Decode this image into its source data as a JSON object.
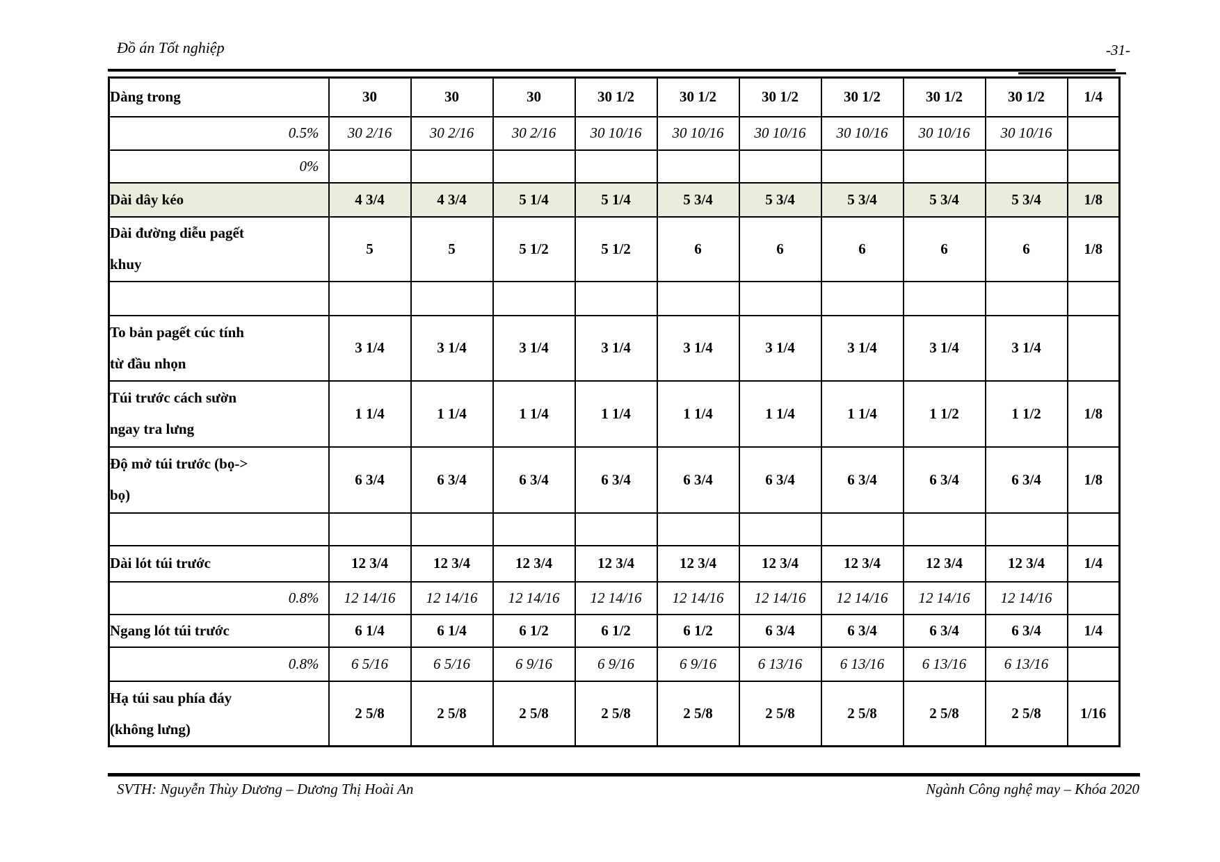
{
  "page": {
    "header": {
      "title": "Đồ án Tốt nghiệp",
      "page_number": "-31-"
    },
    "footer": {
      "left": "SVTH: Nguyễn Thùy Dương – Dương Thị Hoài An",
      "right": "Ngành Công nghệ may – Khóa 2020"
    }
  },
  "table": {
    "highlight_color": "#e9eedc",
    "rows": [
      {
        "type": "measure",
        "highlight": false,
        "label": "Dàng trong",
        "values": [
          "30",
          "30",
          "30",
          "30 1/2",
          "30 1/2",
          "30 1/2",
          "30 1/2",
          "30 1/2",
          "30 1/2"
        ],
        "tolerance": "1/4"
      },
      {
        "type": "percent",
        "highlight": false,
        "label": "0.5%",
        "values": [
          "30 2/16",
          "30 2/16",
          "30 2/16",
          "30 10/16",
          "30 10/16",
          "30 10/16",
          "30 10/16",
          "30 10/16",
          "30 10/16"
        ],
        "tolerance": ""
      },
      {
        "type": "percent",
        "highlight": false,
        "label": "0%",
        "values": [
          "",
          "",
          "",
          "",
          "",
          "",
          "",
          "",
          ""
        ],
        "tolerance": ""
      },
      {
        "type": "measure",
        "highlight": true,
        "label": "Dài dây kéo",
        "values": [
          "4 3/4",
          "4 3/4",
          "5 1/4",
          "5 1/4",
          "5 3/4",
          "5 3/4",
          "5 3/4",
          "5 3/4",
          "5 3/4"
        ],
        "tolerance": "1/8"
      },
      {
        "type": "measure",
        "highlight": false,
        "label": "Dài đường diễu pagết\nkhuy",
        "values": [
          "5",
          "5",
          "5 1/2",
          "5 1/2",
          "6",
          "6",
          "6",
          "6",
          "6"
        ],
        "tolerance": "1/8"
      },
      {
        "type": "empty",
        "highlight": false,
        "label": "",
        "values": [
          "",
          "",
          "",
          "",
          "",
          "",
          "",
          "",
          ""
        ],
        "tolerance": ""
      },
      {
        "type": "measure",
        "highlight": false,
        "label": "To bản pagết cúc tính\ntừ đầu nhọn",
        "values": [
          "3 1/4",
          "3 1/4",
          "3 1/4",
          "3 1/4",
          "3 1/4",
          "3 1/4",
          "3 1/4",
          "3 1/4",
          "3 1/4"
        ],
        "tolerance": ""
      },
      {
        "type": "measure",
        "highlight": false,
        "label": "Túi trước cách sườn\nngay tra lưng",
        "values": [
          "1 1/4",
          "1 1/4",
          "1 1/4",
          "1 1/4",
          "1 1/4",
          "1 1/4",
          "1 1/4",
          "1 1/2",
          "1 1/2"
        ],
        "tolerance": "1/8"
      },
      {
        "type": "measure",
        "highlight": false,
        "label": "Độ mở túi trước (bọ->\nbọ)",
        "values": [
          "6 3/4",
          "6 3/4",
          "6 3/4",
          "6 3/4",
          "6 3/4",
          "6 3/4",
          "6 3/4",
          "6 3/4",
          "6 3/4"
        ],
        "tolerance": "1/8"
      },
      {
        "type": "empty",
        "highlight": false,
        "label": "",
        "values": [
          "",
          "",
          "",
          "",
          "",
          "",
          "",
          "",
          ""
        ],
        "tolerance": ""
      },
      {
        "type": "measure",
        "highlight": false,
        "label": "Dài lót túi trước",
        "values": [
          "12 3/4",
          "12 3/4",
          "12 3/4",
          "12 3/4",
          "12 3/4",
          "12 3/4",
          "12 3/4",
          "12 3/4",
          "12 3/4"
        ],
        "tolerance": "1/4"
      },
      {
        "type": "percent",
        "highlight": false,
        "label": "0.8%",
        "values": [
          "12 14/16",
          "12 14/16",
          "12 14/16",
          "12 14/16",
          "12 14/16",
          "12 14/16",
          "12 14/16",
          "12 14/16",
          "12 14/16"
        ],
        "tolerance": ""
      },
      {
        "type": "measure",
        "highlight": false,
        "label": "Ngang lót túi trước",
        "values": [
          "6 1/4",
          "6 1/4",
          "6 1/2",
          "6 1/2",
          "6 1/2",
          "6 3/4",
          "6 3/4",
          "6 3/4",
          "6 3/4"
        ],
        "tolerance": "1/4"
      },
      {
        "type": "percent",
        "highlight": false,
        "label": "0.8%",
        "values": [
          "6 5/16",
          "6 5/16",
          "6 9/16",
          "6 9/16",
          "6 9/16",
          "6 13/16",
          "6 13/16",
          "6 13/16",
          "6 13/16"
        ],
        "tolerance": ""
      },
      {
        "type": "measure",
        "highlight": false,
        "label": "Hạ túi sau phía đáy\n(không lưng)",
        "values": [
          "2 5/8",
          "2 5/8",
          "2 5/8",
          "2 5/8",
          "2 5/8",
          "2 5/8",
          "2 5/8",
          "2 5/8",
          "2 5/8"
        ],
        "tolerance": "1/16"
      }
    ]
  }
}
